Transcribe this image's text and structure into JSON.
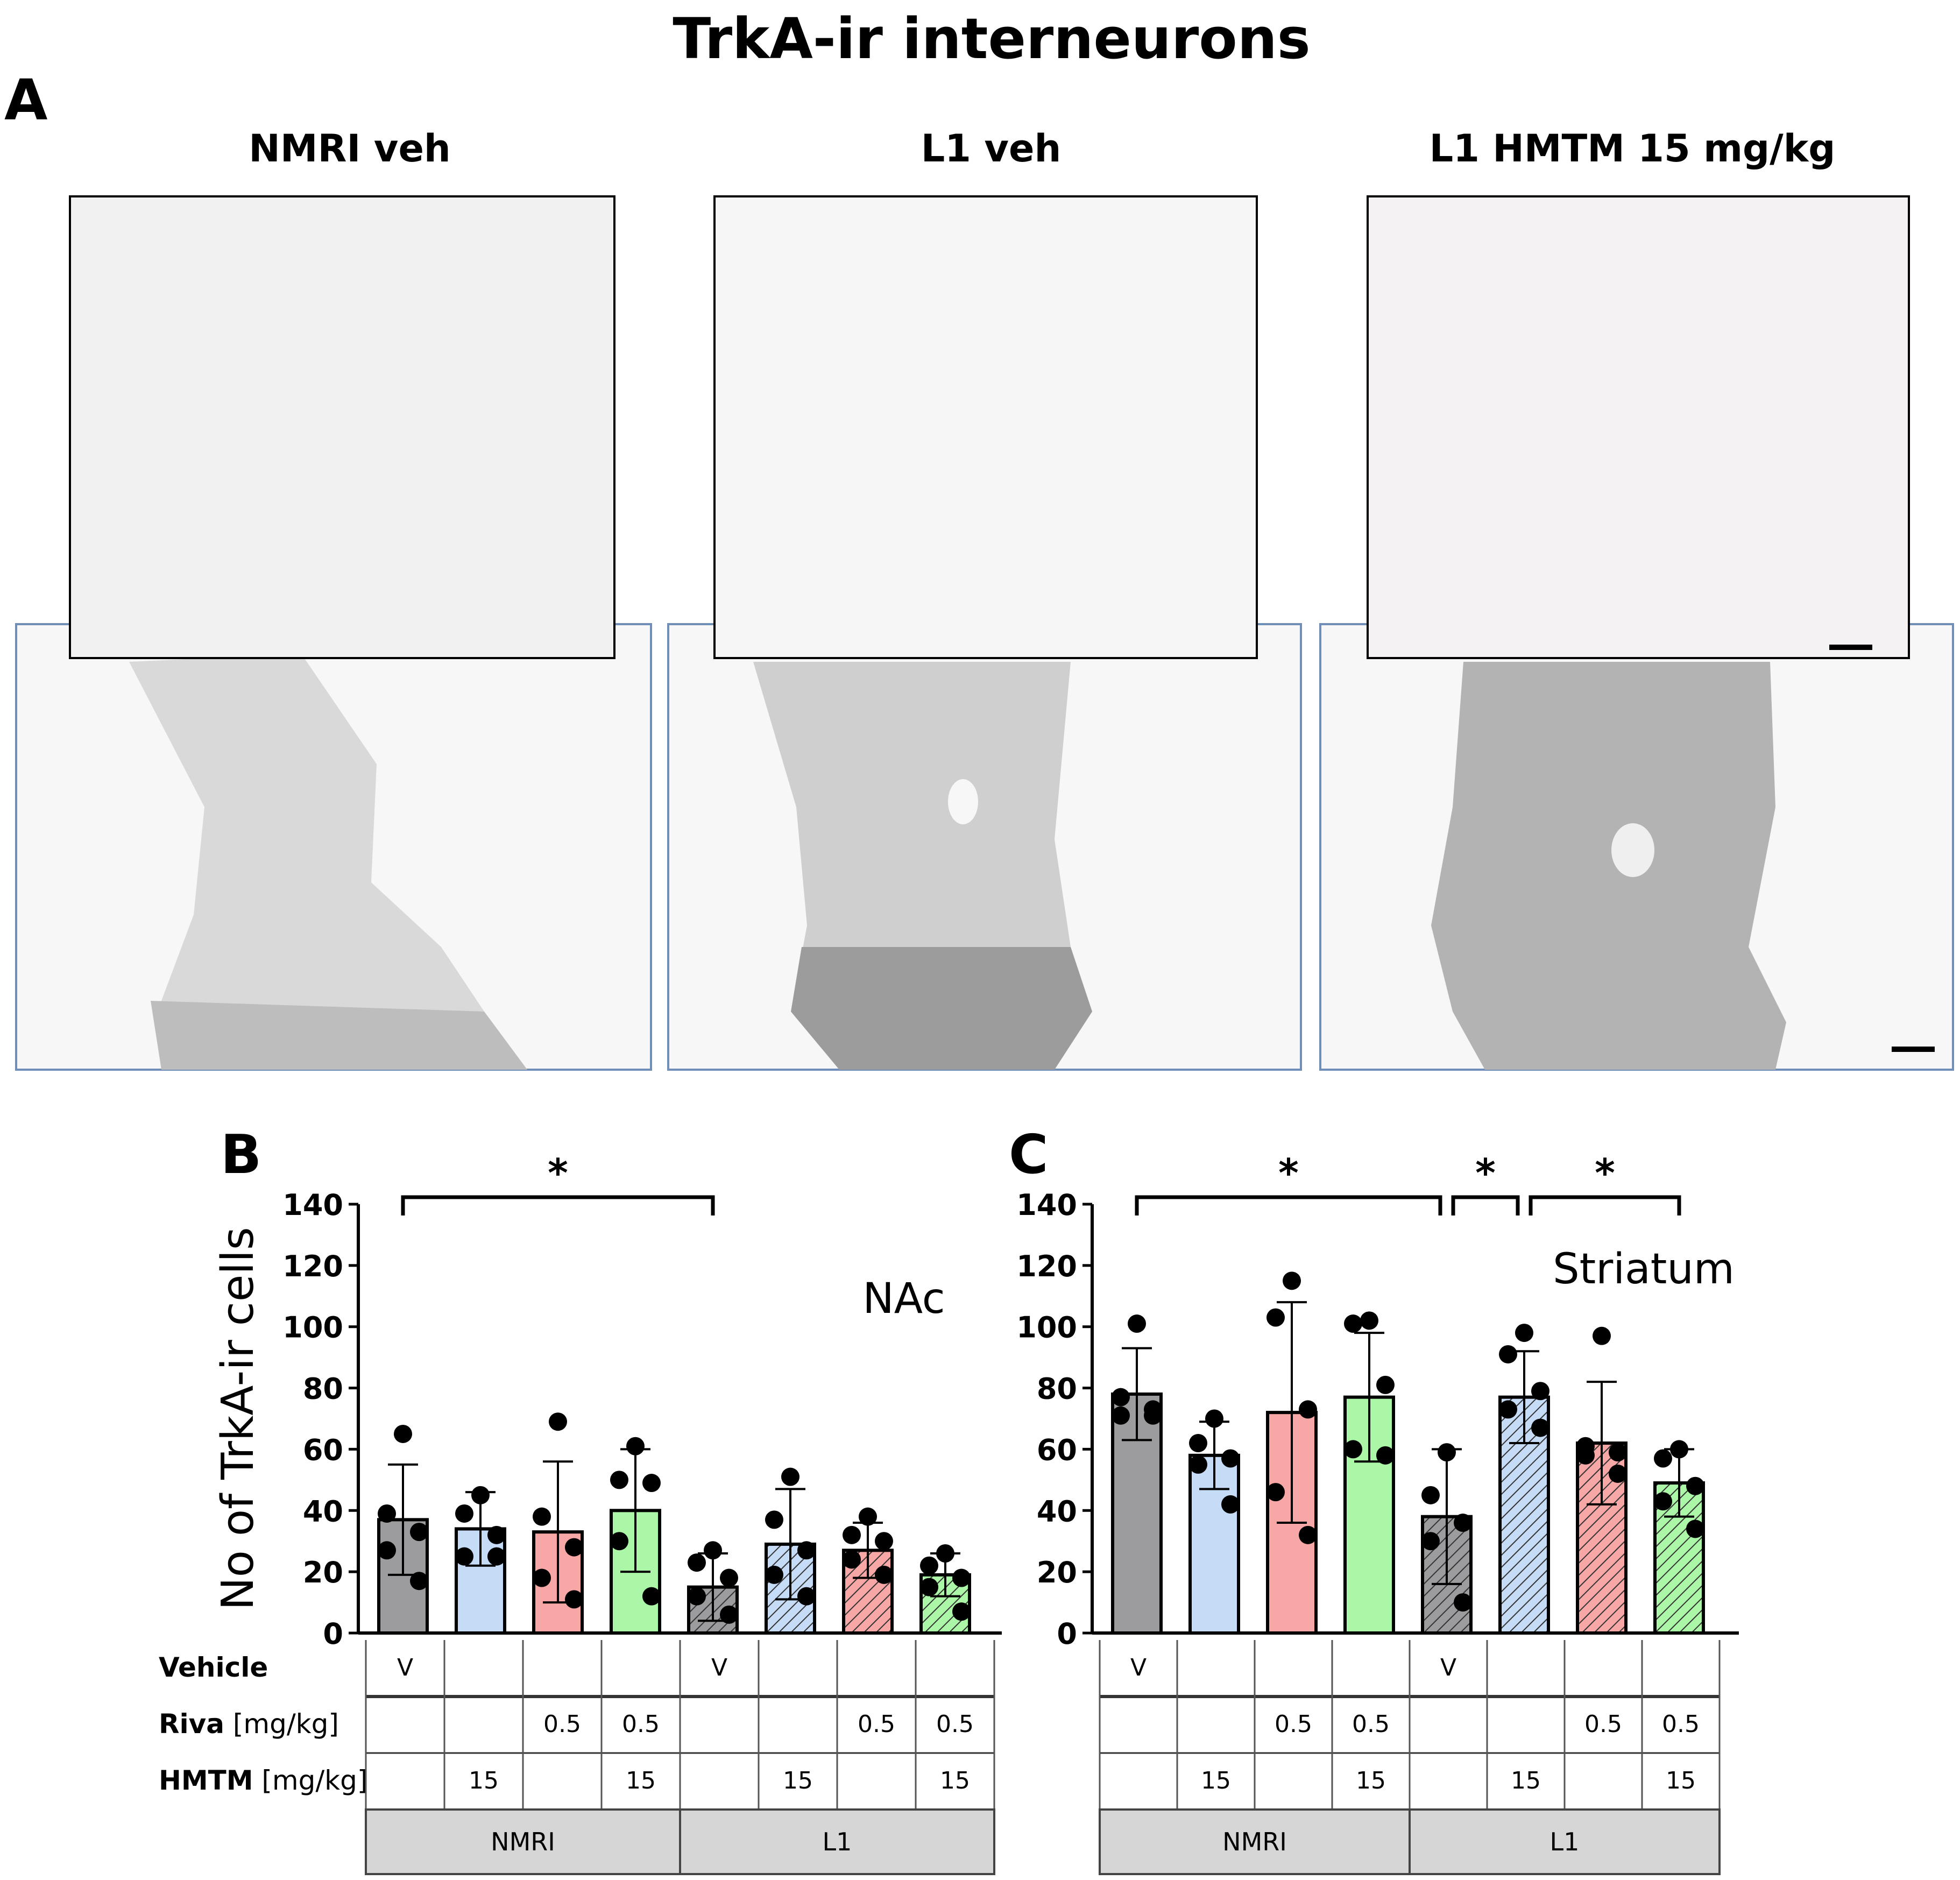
{
  "figure_title": "TrkA-ir interneurons",
  "panel_a": {
    "letter": "A",
    "columns": [
      {
        "label": "NMRI veh"
      },
      {
        "label": "L1 veh"
      },
      {
        "label": "L1 HMTM  15 mg/kg"
      }
    ]
  },
  "colors": {
    "gray": "#9c9c9e",
    "blue": "#c6dcf6",
    "red": "#f7a7a5",
    "green": "#acf6a8",
    "header_gray": "#d6d6d6"
  },
  "chart_data": [
    {
      "type": "bar",
      "panel": "B",
      "region_label": "NAc",
      "ylabel": "No of TrkA-ir cells",
      "ylim": [
        0,
        140
      ],
      "yticks": [
        0,
        20,
        40,
        60,
        80,
        100,
        120,
        140
      ],
      "groups": [
        {
          "color": "gray",
          "hatched": false,
          "mean": 37,
          "sd": 18,
          "points": [
            65,
            39,
            33,
            27,
            17
          ]
        },
        {
          "color": "blue",
          "hatched": false,
          "mean": 34,
          "sd": 12,
          "points": [
            45,
            39,
            32,
            25,
            25
          ]
        },
        {
          "color": "red",
          "hatched": false,
          "mean": 33,
          "sd": 23,
          "points": [
            69,
            38,
            28,
            18,
            11
          ]
        },
        {
          "color": "green",
          "hatched": false,
          "mean": 40,
          "sd": 20,
          "points": [
            61,
            50,
            49,
            30,
            12
          ]
        },
        {
          "color": "gray",
          "hatched": true,
          "mean": 15,
          "sd": 11,
          "points": [
            27,
            23,
            18,
            12,
            6
          ]
        },
        {
          "color": "blue",
          "hatched": true,
          "mean": 29,
          "sd": 18,
          "points": [
            51,
            37,
            27,
            19,
            12
          ]
        },
        {
          "color": "red",
          "hatched": true,
          "mean": 27,
          "sd": 9,
          "points": [
            38,
            32,
            30,
            24,
            19
          ]
        },
        {
          "color": "green",
          "hatched": true,
          "mean": 19,
          "sd": 7,
          "points": [
            26,
            22,
            18,
            15,
            7
          ]
        }
      ],
      "significance": [
        {
          "from": 0,
          "to": 4,
          "label": "*"
        }
      ],
      "table": {
        "rows": [
          {
            "label_bold": "Vehicle",
            "label_unit": "",
            "cells": [
              "V",
              "",
              "",
              "",
              "V",
              "",
              "",
              ""
            ]
          },
          {
            "label_bold": "Riva",
            "label_unit": " [mg/kg]",
            "cells": [
              "",
              "",
              "0.5",
              "0.5",
              "",
              "",
              "0.5",
              "0.5"
            ]
          },
          {
            "label_bold": "HMTM",
            "label_unit": " [mg/kg]",
            "cells": [
              "",
              "15",
              "",
              "15",
              "",
              "15",
              "",
              "15"
            ]
          }
        ],
        "strains": [
          "NMRI",
          "L1"
        ]
      }
    },
    {
      "type": "bar",
      "panel": "C",
      "region_label": "Striatum",
      "ylabel": "",
      "ylim": [
        0,
        140
      ],
      "yticks": [
        0,
        20,
        40,
        60,
        80,
        100,
        120,
        140
      ],
      "groups": [
        {
          "color": "gray",
          "hatched": false,
          "mean": 78,
          "sd": 15,
          "points": [
            101,
            77,
            73,
            71,
            71
          ]
        },
        {
          "color": "blue",
          "hatched": false,
          "mean": 58,
          "sd": 11,
          "points": [
            70,
            62,
            57,
            55,
            42
          ]
        },
        {
          "color": "red",
          "hatched": false,
          "mean": 72,
          "sd": 36,
          "points": [
            115,
            103,
            73,
            46,
            32
          ]
        },
        {
          "color": "green",
          "hatched": false,
          "mean": 77,
          "sd": 21,
          "points": [
            102,
            101,
            81,
            60,
            58
          ]
        },
        {
          "color": "gray",
          "hatched": true,
          "mean": 38,
          "sd": 22,
          "points": [
            59,
            45,
            36,
            30,
            10
          ]
        },
        {
          "color": "blue",
          "hatched": true,
          "mean": 77,
          "sd": 15,
          "points": [
            98,
            91,
            79,
            73,
            67
          ]
        },
        {
          "color": "red",
          "hatched": true,
          "mean": 62,
          "sd": 20,
          "points": [
            97,
            61,
            59,
            58,
            52
          ]
        },
        {
          "color": "green",
          "hatched": true,
          "mean": 49,
          "sd": 11,
          "points": [
            60,
            57,
            48,
            43,
            34
          ]
        }
      ],
      "significance": [
        {
          "from": 0,
          "to": 4,
          "label": "*"
        },
        {
          "from": 4,
          "to": 5,
          "label": "*"
        },
        {
          "from": 5,
          "to": 7,
          "label": "*"
        }
      ],
      "table": {
        "rows": [
          {
            "label_bold": "",
            "label_unit": "",
            "cells": [
              "V",
              "",
              "",
              "",
              "V",
              "",
              "",
              ""
            ]
          },
          {
            "label_bold": "",
            "label_unit": "",
            "cells": [
              "",
              "",
              "0.5",
              "0.5",
              "",
              "",
              "0.5",
              "0.5"
            ]
          },
          {
            "label_bold": "",
            "label_unit": "",
            "cells": [
              "",
              "15",
              "",
              "15",
              "",
              "15",
              "",
              "15"
            ]
          }
        ],
        "strains": [
          "NMRI",
          "L1"
        ]
      }
    }
  ]
}
